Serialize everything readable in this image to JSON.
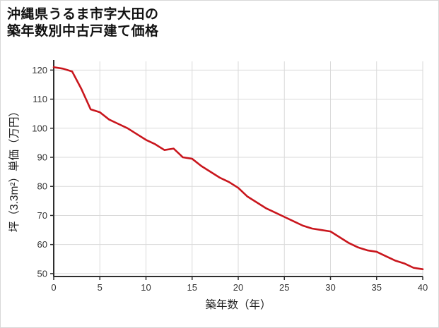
{
  "title_line1": "沖縄県うるま市字大田の",
  "title_line2": "築年数別中古戸建て価格",
  "chart_data": {
    "type": "line",
    "title": "沖縄県うるま市字大田の築年数別中古戸建て価格",
    "xlabel": "築年数（年）",
    "ylabel": "坪（3.3m²）単価（万円）",
    "x": [
      0,
      1,
      2,
      3,
      4,
      5,
      6,
      7,
      8,
      9,
      10,
      11,
      12,
      13,
      14,
      15,
      16,
      17,
      18,
      19,
      20,
      21,
      22,
      23,
      24,
      25,
      26,
      27,
      28,
      29,
      30,
      31,
      32,
      33,
      34,
      35,
      36,
      37,
      38,
      39,
      40
    ],
    "values": [
      121,
      120.5,
      119.5,
      113.5,
      106.5,
      105.5,
      103,
      101.5,
      100,
      98,
      96,
      94.5,
      92.5,
      93,
      90,
      89.5,
      87,
      85,
      83,
      81.5,
      79.5,
      76.5,
      74.5,
      72.5,
      71,
      69.5,
      68,
      66.5,
      65.5,
      65,
      64.5,
      62.5,
      60.5,
      59,
      58,
      57.5,
      56,
      54.5,
      53.5,
      52,
      51.5
    ],
    "xlim": [
      0,
      40
    ],
    "ylim": [
      49,
      123
    ],
    "x_ticks": [
      0,
      5,
      10,
      15,
      20,
      25,
      30,
      35,
      40
    ],
    "y_ticks": [
      50,
      60,
      70,
      80,
      90,
      100,
      110,
      120
    ],
    "grid": true,
    "legend": "none",
    "colors": {
      "line": "#c9161d",
      "grid": "#dadada",
      "axis": "#2e2e2e",
      "text": "#333333"
    }
  }
}
